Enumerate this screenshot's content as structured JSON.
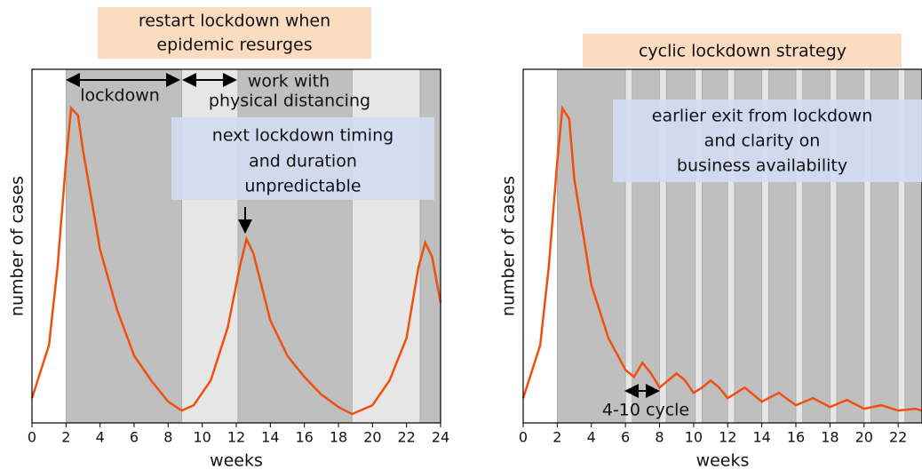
{
  "chart_data": [
    {
      "type": "line",
      "title": [
        "restart lockdown when",
        "epidemic resurges"
      ],
      "xlabel": "weeks",
      "ylabel": "number of cases",
      "xlim": [
        0,
        24
      ],
      "xticks": [
        0,
        2,
        4,
        6,
        8,
        10,
        12,
        14,
        16,
        18,
        20,
        22,
        24
      ],
      "ylim": [
        0,
        1
      ],
      "color": "#f0500f",
      "x": [
        0,
        1,
        1.5,
        2,
        2.3,
        2.7,
        3,
        4,
        5,
        6,
        7,
        8,
        8.8,
        9.5,
        10.5,
        11.5,
        12.2,
        12.6,
        13,
        14,
        15,
        16,
        17,
        18,
        18.8,
        20,
        21,
        22,
        22.7,
        23.1,
        23.5,
        24
      ],
      "values": [
        0.07,
        0.22,
        0.44,
        0.74,
        0.89,
        0.87,
        0.77,
        0.49,
        0.32,
        0.19,
        0.12,
        0.06,
        0.035,
        0.05,
        0.12,
        0.27,
        0.44,
        0.52,
        0.48,
        0.29,
        0.19,
        0.13,
        0.08,
        0.045,
        0.025,
        0.05,
        0.12,
        0.24,
        0.44,
        0.51,
        0.47,
        0.34
      ],
      "regions": [
        {
          "start": 2,
          "end": 8.8,
          "color": "#bfbfbf"
        },
        {
          "start": 8.8,
          "end": 12.1,
          "color": "#e6e6e6"
        },
        {
          "start": 12.1,
          "end": 18.8,
          "color": "#bfbfbf"
        },
        {
          "start": 18.8,
          "end": 22.8,
          "color": "#e6e6e6"
        },
        {
          "start": 22.8,
          "end": 24,
          "color": "#bfbfbf"
        }
      ],
      "annotations": [
        [
          "lockdown"
        ],
        [
          "work with",
          "physical distancing"
        ],
        [
          "next lockdown timing",
          "and duration",
          "unpredictable"
        ]
      ]
    },
    {
      "type": "line",
      "title": [
        "cyclic lockdown strategy"
      ],
      "xlabel": "weeks",
      "ylabel": "number of cases",
      "xlim": [
        0,
        23.4
      ],
      "xticks": [
        0,
        2,
        4,
        6,
        8,
        10,
        12,
        14,
        16,
        18,
        20,
        22
      ],
      "ylim": [
        0,
        1
      ],
      "color": "#f0500f",
      "x": [
        0,
        1,
        1.5,
        2,
        2.3,
        2.7,
        3,
        4,
        5,
        6,
        6.5,
        7,
        7.5,
        8,
        8.5,
        9,
        9.5,
        10,
        10.5,
        11,
        11.5,
        12,
        13,
        14,
        15,
        16,
        17,
        18,
        19,
        20,
        21,
        22,
        23,
        23.4
      ],
      "values": [
        0.07,
        0.22,
        0.44,
        0.74,
        0.89,
        0.86,
        0.69,
        0.39,
        0.24,
        0.15,
        0.13,
        0.17,
        0.14,
        0.1,
        0.12,
        0.14,
        0.12,
        0.085,
        0.1,
        0.12,
        0.1,
        0.07,
        0.1,
        0.06,
        0.085,
        0.05,
        0.07,
        0.045,
        0.065,
        0.04,
        0.05,
        0.035,
        0.04,
        0.035
      ],
      "regions": [
        {
          "start": 2,
          "end": 23.4,
          "color": "#bfbfbf"
        },
        {
          "start": 6,
          "end": 6.4,
          "color": "#e6e6e6"
        },
        {
          "start": 8,
          "end": 8.4,
          "color": "#e6e6e6"
        },
        {
          "start": 10.1,
          "end": 10.5,
          "color": "#e6e6e6"
        },
        {
          "start": 12,
          "end": 12.4,
          "color": "#e6e6e6"
        },
        {
          "start": 14,
          "end": 14.4,
          "color": "#e6e6e6"
        },
        {
          "start": 16,
          "end": 16.4,
          "color": "#e6e6e6"
        },
        {
          "start": 18,
          "end": 18.4,
          "color": "#e6e6e6"
        },
        {
          "start": 20,
          "end": 20.4,
          "color": "#e6e6e6"
        },
        {
          "start": 22,
          "end": 22.4,
          "color": "#e6e6e6"
        }
      ],
      "annotations": [
        [
          "earlier exit from lockdown",
          "and clarity on",
          "business availability"
        ],
        [
          "4-10 cycle"
        ]
      ]
    }
  ]
}
